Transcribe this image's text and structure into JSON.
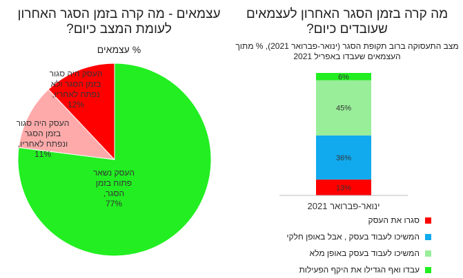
{
  "chart_data": [
    {
      "type": "pie",
      "title": "עצמאים - מה קרה בזמן הסגר האחרון לעומת המצב כיום?",
      "subtitle": "% עצמאים",
      "slices": [
        {
          "label": "העסק נשאר פתוח בזמן הסגר,",
          "value": 77,
          "value_label": "77%",
          "color": "#22ee22"
        },
        {
          "label": "העסק היה סגור בזמן הסגר ונפתח לאחריו,",
          "value": 11,
          "value_label": "11%",
          "color": "#ffaaaa"
        },
        {
          "label": "העסק היה סגור בזמן הסגר ולא נפתח לאחריו,",
          "value": 12,
          "value_label": "12%",
          "color": "#ff0000"
        }
      ]
    },
    {
      "type": "bar",
      "stacked": true,
      "title": "מה קרה בזמן הסגר האחרון לעצמאים שעובדים כיום?",
      "subtitle": "מצב התעסוקה ברוב תקופת הסגר (ינואר-פברואר 2021), % מתוך העצמאים שעבדו באפריל 2021",
      "categories": [
        "ינואר-פברואר 2021"
      ],
      "ylim": [
        0,
        100
      ],
      "series": [
        {
          "name": "סגרו את העסק",
          "values": [
            13
          ],
          "value_label": "13%",
          "color": "#ff0000"
        },
        {
          "name": "המשיכו לעבוד בעסק , אבל באופן חלקי",
          "values": [
            36
          ],
          "value_label": "36%",
          "color": "#11aaee"
        },
        {
          "name": "המשיכו לעבוד בעסק באופן מלא",
          "values": [
            45
          ],
          "value_label": "45%",
          "color": "#99ee99"
        },
        {
          "name": "עבדו ואף הגדילו את היקף הפעילות",
          "values": [
            6
          ],
          "value_label": "6%",
          "color": "#22ee22"
        }
      ],
      "legend_position": "bottom"
    }
  ]
}
